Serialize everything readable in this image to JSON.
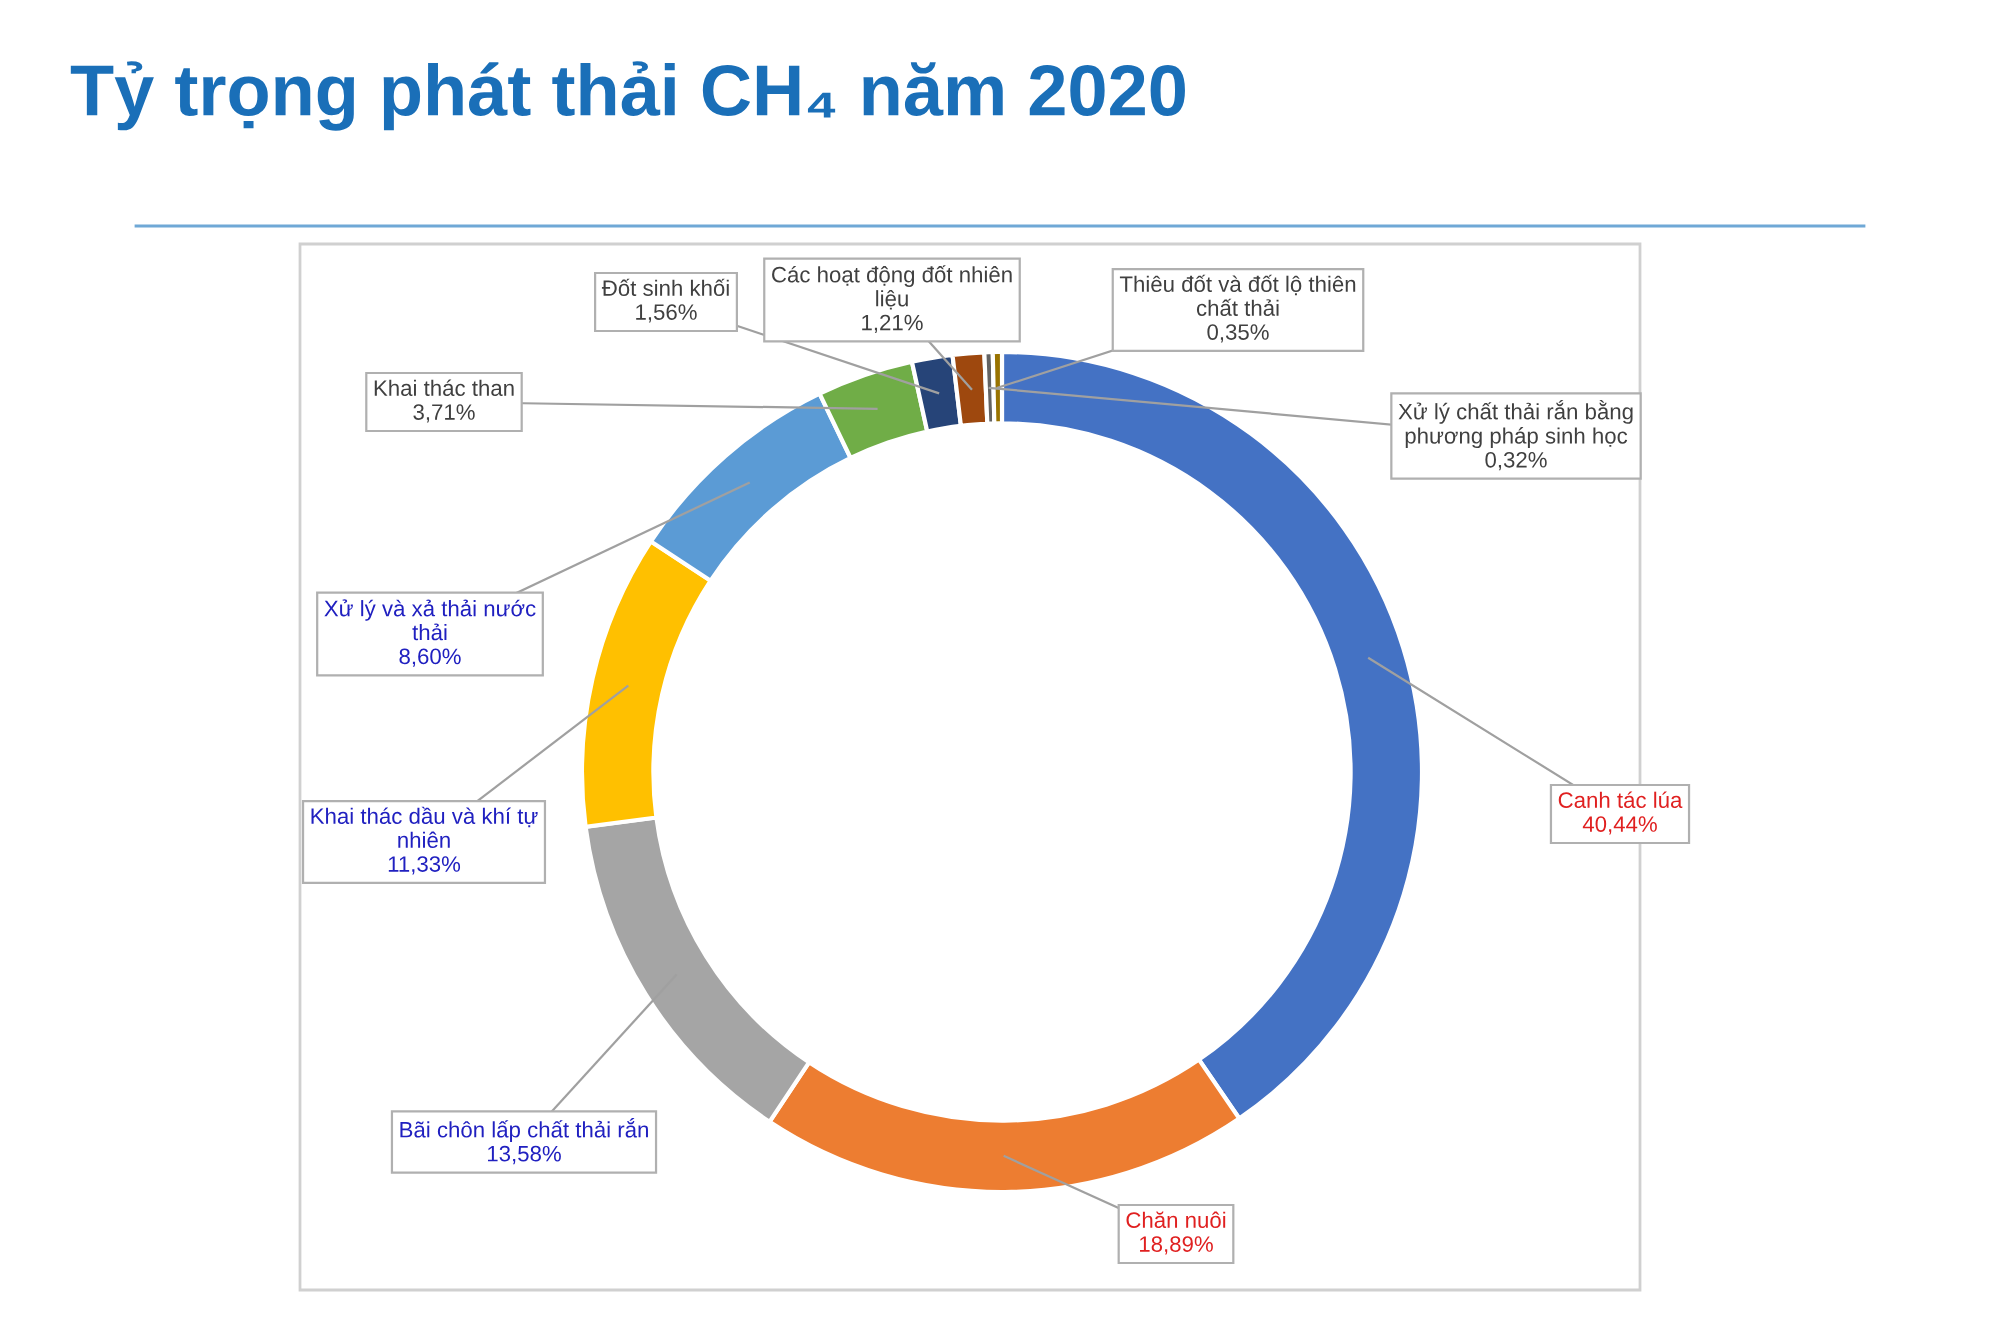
{
  "chart_data": {
    "type": "donut",
    "title": "Tỷ trọng phát thải CH₄ năm 2020",
    "categories": [
      "Canh tác lúa",
      "Chăn nuôi",
      "Bãi chôn lấp chất thải rắn",
      "Khai thác dầu và khí tự\nnhiên",
      "Xử lý và xả thải nước\nthải",
      "Khai thác than",
      "Đốt sinh khối",
      "Các hoạt động đốt nhiên\nliệu",
      "Xử lý chất thải rắn bằng\nphương pháp sinh học",
      "Thiêu đốt và đốt lộ thiên\nchất thải"
    ],
    "values": [
      40.44,
      18.89,
      13.58,
      11.33,
      8.6,
      3.71,
      1.56,
      1.21,
      0.32,
      0.35
    ],
    "value_labels": [
      "40,44%",
      "18,89%",
      "13,58%",
      "11,33%",
      "8,60%",
      "3,71%",
      "1,56%",
      "1,21%",
      "0,32%",
      "0,35%"
    ],
    "colors": [
      "#4472c4",
      "#ed7d31",
      "#a5a5a5",
      "#ffc000",
      "#5b9bd5",
      "#70ad47",
      "#264478",
      "#9e480e",
      "#636363",
      "#997300"
    ],
    "legend": false
  }
}
